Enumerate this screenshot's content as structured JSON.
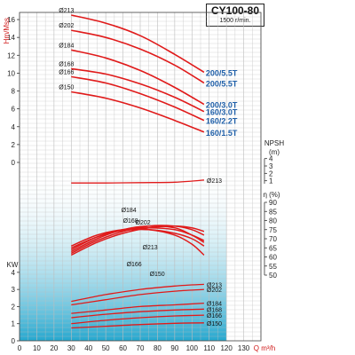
{
  "header": {
    "model": "CY100-80",
    "speed": "1500 r/min."
  },
  "colors": {
    "curve": "#e01a1a",
    "model_label": "#1f5fa8",
    "axis_label": "#d01818",
    "grid": "#bdbdbd",
    "shade_top": "#ffffff",
    "shade_bottom": "#1aa3cc"
  },
  "chart_data": [
    {
      "type": "line",
      "panel": "head",
      "ylabel": "Hm/Mss",
      "xlabel": "Q m³/h",
      "xlim": [
        0,
        140
      ],
      "ylim": [
        0,
        16
      ],
      "x_ticks": [
        0,
        10,
        20,
        30,
        40,
        50,
        60,
        70,
        80,
        90,
        100,
        110,
        120,
        130
      ],
      "y_ticks": [
        0,
        2,
        4,
        6,
        8,
        10,
        12,
        14,
        16
      ],
      "series": [
        {
          "name": "Ø213",
          "model": "200/5.5T",
          "x": [
            30,
            50,
            70,
            90,
            107
          ],
          "y": [
            16.5,
            15.6,
            14.2,
            12.1,
            10.1
          ]
        },
        {
          "name": "Ø202",
          "model": "200/5.5T",
          "x": [
            30,
            50,
            70,
            90,
            107
          ],
          "y": [
            14.8,
            14.0,
            12.7,
            10.9,
            8.9
          ]
        },
        {
          "name": "Ø184",
          "model": "200/3.0T",
          "x": [
            30,
            50,
            70,
            90,
            107
          ],
          "y": [
            12.6,
            11.7,
            10.3,
            8.4,
            6.5
          ]
        },
        {
          "name": "Ø168",
          "model": "160/3.0T",
          "x": [
            30,
            50,
            70,
            90,
            107
          ],
          "y": [
            10.5,
            9.9,
            8.8,
            7.3,
            5.7
          ]
        },
        {
          "name": "Ø166",
          "model": "160/2.2T",
          "x": [
            30,
            50,
            70,
            90,
            107
          ],
          "y": [
            9.6,
            8.9,
            7.7,
            6.2,
            4.7
          ]
        },
        {
          "name": "Ø150",
          "model": "160/1.5T",
          "x": [
            30,
            50,
            70,
            90,
            107
          ],
          "y": [
            7.9,
            7.2,
            6.1,
            4.7,
            3.4
          ]
        }
      ]
    },
    {
      "type": "line",
      "panel": "npsh",
      "ylabel": "NPSH (m)",
      "ylim": [
        0,
        4
      ],
      "y_ticks": [
        1,
        2,
        3,
        4
      ],
      "series": [
        {
          "name": "Ø213",
          "x": [
            30,
            50,
            70,
            90,
            107
          ],
          "y": [
            0.7,
            0.7,
            0.75,
            0.8,
            1.1
          ]
        }
      ]
    },
    {
      "type": "line",
      "panel": "efficiency",
      "ylabel": "η (%)",
      "ylim": [
        50,
        90
      ],
      "y_ticks": [
        50,
        55,
        60,
        65,
        70,
        75,
        80,
        85,
        90
      ],
      "series": [
        {
          "name": "Ø184",
          "x": [
            30,
            45,
            60,
            75,
            90,
            100,
            107
          ],
          "y": [
            63,
            70,
            75,
            77,
            76,
            72,
            68
          ]
        },
        {
          "name": "Ø202",
          "x": [
            30,
            45,
            60,
            75,
            90,
            100,
            107
          ],
          "y": [
            62,
            69,
            74,
            77,
            77,
            75,
            72
          ]
        },
        {
          "name": "Ø213",
          "x": [
            30,
            45,
            60,
            75,
            90,
            100,
            107
          ],
          "y": [
            61,
            68,
            73,
            76,
            77,
            76,
            74
          ]
        },
        {
          "name": "Ø168",
          "x": [
            30,
            45,
            60,
            75,
            90,
            100,
            107
          ],
          "y": [
            64,
            71,
            75,
            76,
            75,
            72,
            69
          ]
        },
        {
          "name": "Ø166",
          "x": [
            30,
            45,
            60,
            75,
            90,
            100,
            107
          ],
          "y": [
            65,
            71,
            74.5,
            75,
            73,
            70,
            66
          ]
        },
        {
          "name": "Ø150",
          "x": [
            30,
            45,
            60,
            75,
            90,
            100,
            107
          ],
          "y": [
            66,
            72,
            75,
            75,
            72,
            67,
            61
          ]
        }
      ]
    },
    {
      "type": "line",
      "panel": "power",
      "ylabel": "KW",
      "ylim": [
        0,
        4
      ],
      "y_ticks": [
        0,
        1,
        2,
        3,
        4
      ],
      "series": [
        {
          "name": "Ø213",
          "x": [
            30,
            50,
            70,
            90,
            107
          ],
          "y": [
            2.3,
            2.7,
            3.0,
            3.2,
            3.3
          ]
        },
        {
          "name": "Ø202",
          "x": [
            30,
            50,
            70,
            90,
            107
          ],
          "y": [
            2.1,
            2.4,
            2.7,
            2.9,
            3.0
          ]
        },
        {
          "name": "Ø184",
          "x": [
            30,
            50,
            70,
            90,
            107
          ],
          "y": [
            1.6,
            1.8,
            2.0,
            2.1,
            2.2
          ]
        },
        {
          "name": "Ø168",
          "x": [
            30,
            50,
            70,
            90,
            107
          ],
          "y": [
            1.35,
            1.55,
            1.7,
            1.8,
            1.85
          ]
        },
        {
          "name": "Ø166",
          "x": [
            30,
            50,
            70,
            90,
            107
          ],
          "y": [
            1.0,
            1.2,
            1.35,
            1.45,
            1.5
          ]
        },
        {
          "name": "Ø150",
          "x": [
            30,
            50,
            70,
            90,
            107
          ],
          "y": [
            0.75,
            0.85,
            0.95,
            1.02,
            1.05
          ]
        }
      ]
    }
  ]
}
